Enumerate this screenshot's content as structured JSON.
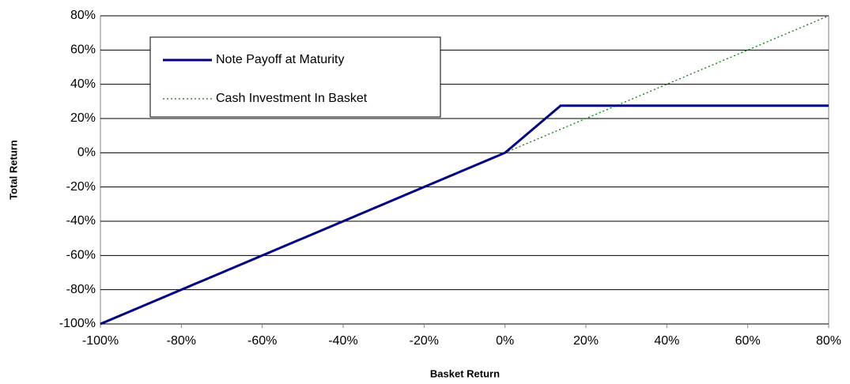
{
  "chart_data": {
    "type": "line",
    "xlabel": "Basket Return",
    "ylabel": "Total Return",
    "series": [
      {
        "name": "Note Payoff at Maturity",
        "color": "#000080",
        "style": "solid",
        "x": [
          -100,
          0,
          13.75,
          80
        ],
        "values": [
          -100,
          0,
          27.5,
          27.5
        ]
      },
      {
        "name": "Cash Investment In Basket",
        "color": "#008000",
        "style": "dotted",
        "x": [
          -100,
          80
        ],
        "values": [
          -100,
          80
        ]
      }
    ],
    "xlim": [
      -100,
      80
    ],
    "xticks": [
      {
        "value": -100,
        "label": "-100%"
      },
      {
        "value": -80,
        "label": "-80%"
      },
      {
        "value": -60,
        "label": "-60%"
      },
      {
        "value": -40,
        "label": "-40%"
      },
      {
        "value": -20,
        "label": "-20%"
      },
      {
        "value": 0,
        "label": "0%"
      },
      {
        "value": 20,
        "label": "20%"
      },
      {
        "value": 40,
        "label": "40%"
      },
      {
        "value": 60,
        "label": "60%"
      },
      {
        "value": 80,
        "label": "80%"
      }
    ],
    "ylim": [
      -100,
      80
    ],
    "yticks": [
      {
        "value": -100,
        "label": "-100%"
      },
      {
        "value": -80,
        "label": "-80%"
      },
      {
        "value": -60,
        "label": "-60%"
      },
      {
        "value": -40,
        "label": "-40%"
      },
      {
        "value": -20,
        "label": "-20%"
      },
      {
        "value": 0,
        "label": "0%"
      },
      {
        "value": 20,
        "label": "20%"
      },
      {
        "value": 40,
        "label": "40%"
      },
      {
        "value": 60,
        "label": "60%"
      },
      {
        "value": 80,
        "label": "80%"
      }
    ],
    "grid": true,
    "legend": "upper left"
  }
}
